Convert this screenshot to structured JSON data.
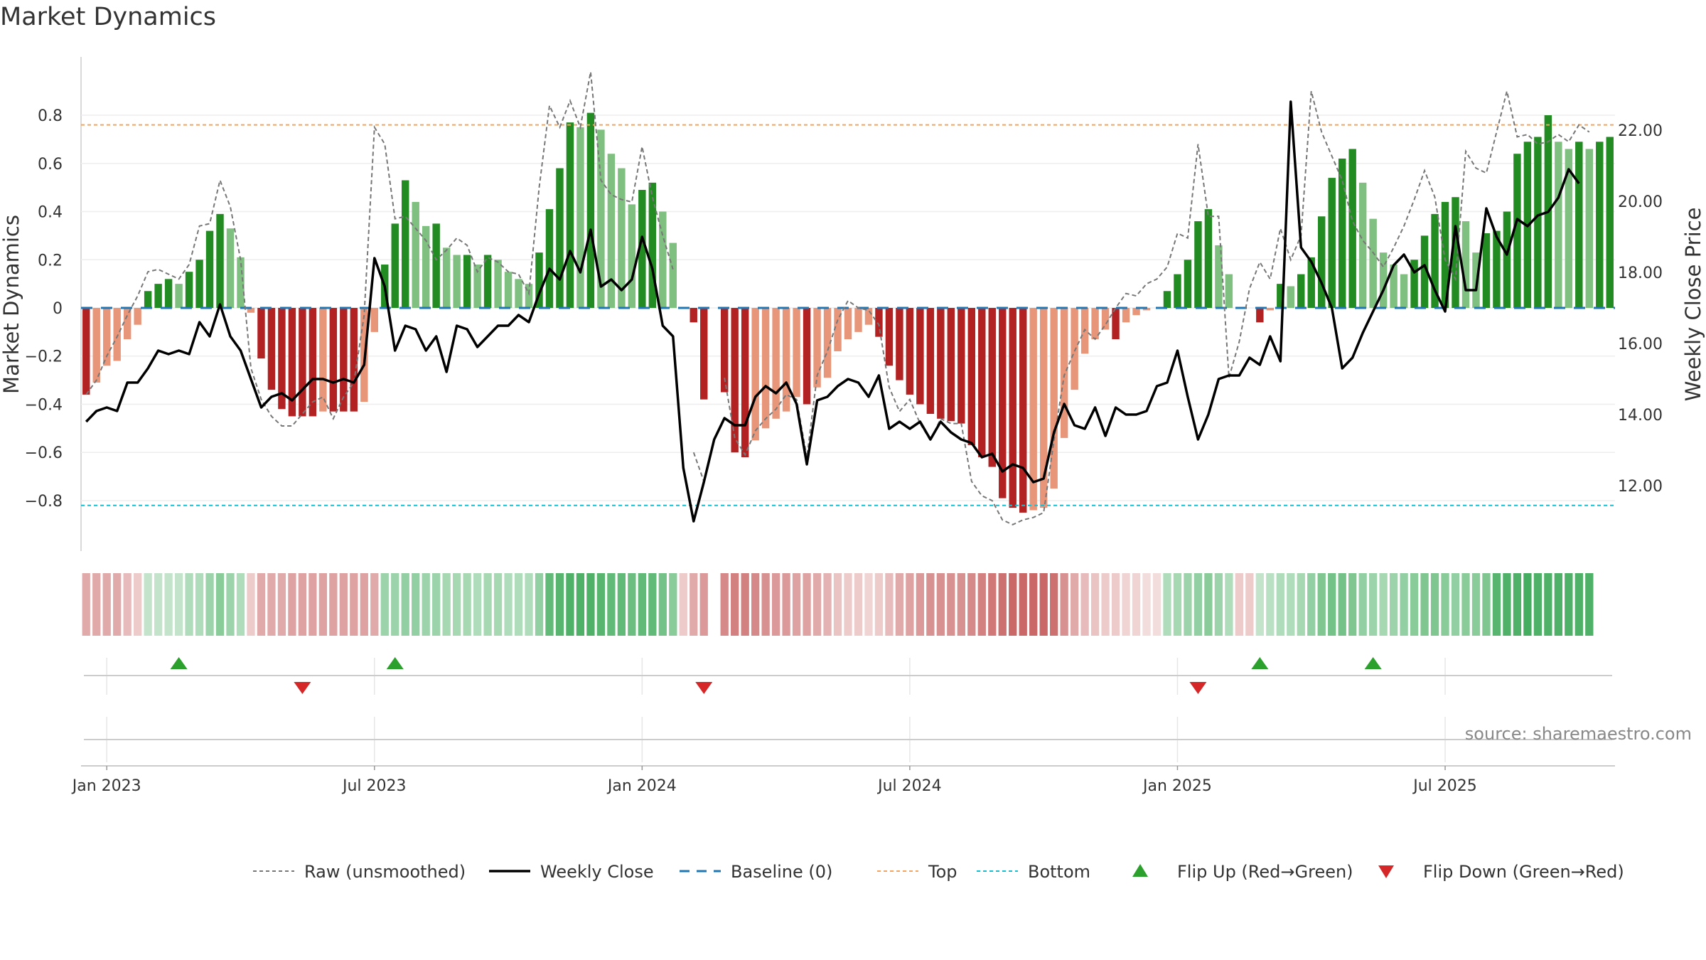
{
  "title": "Market Dynamics",
  "source": "source: sharemaestro.com",
  "colors": {
    "strong_green": "#228b22",
    "light_green": "#7fbf7f",
    "strong_red": "#b22222",
    "light_red": "#e8967a",
    "weekly_close": "#000000",
    "raw": "#777777",
    "baseline": "#1f77b4",
    "top": "#f4a460",
    "bottom": "#17becf",
    "flip_up": "#2ca02c",
    "flip_down": "#d62728"
  },
  "chart_data": {
    "type": "bar",
    "title": "Market Dynamics",
    "ylabel": "Market Dynamics",
    "y2label": "Weekly Close Price",
    "ylim": [
      -0.93,
      0.93
    ],
    "y2lim": [
      10.7,
      23.3
    ],
    "yticks": [
      {
        "v": 0.8,
        "label": "0.8"
      },
      {
        "v": 0.6,
        "label": "0.6"
      },
      {
        "v": 0.4,
        "label": "0.4"
      },
      {
        "v": 0.2,
        "label": "0.2"
      },
      {
        "v": 0,
        "label": "0"
      },
      {
        "v": -0.2,
        "label": "−0.2"
      },
      {
        "v": -0.4,
        "label": "−0.4"
      },
      {
        "v": -0.6,
        "label": "−0.6"
      },
      {
        "v": -0.8,
        "label": "−0.8"
      }
    ],
    "y2ticks": [
      {
        "v": 22,
        "label": "22.00"
      },
      {
        "v": 20,
        "label": "20.00"
      },
      {
        "v": 18,
        "label": "18.00"
      },
      {
        "v": 16,
        "label": "16.00"
      },
      {
        "v": 14,
        "label": "14.00"
      },
      {
        "v": 12,
        "label": "12.00"
      }
    ],
    "xticks": [
      {
        "week": 2,
        "label": "Jan 2023"
      },
      {
        "week": 28,
        "label": "Jul 2023"
      },
      {
        "week": 54,
        "label": "Jan 2024"
      },
      {
        "week": 80,
        "label": "Jul 2024"
      },
      {
        "week": 106,
        "label": "Jan 2025"
      },
      {
        "week": 132,
        "label": "Jul 2025"
      }
    ],
    "top_level": 0.76,
    "bottom_level": -0.82,
    "baseline": 0,
    "market_dynamics": [
      -0.36,
      -0.31,
      -0.24,
      -0.22,
      -0.13,
      -0.07,
      0.07,
      0.1,
      0.12,
      0.1,
      0.15,
      0.2,
      0.32,
      0.39,
      0.33,
      0.21,
      -0.02,
      -0.21,
      -0.34,
      -0.42,
      -0.45,
      -0.45,
      -0.45,
      -0.43,
      -0.43,
      -0.43,
      -0.43,
      -0.39,
      -0.1,
      0.18,
      0.35,
      0.53,
      0.44,
      0.34,
      0.35,
      0.25,
      0.22,
      0.22,
      0.18,
      0.22,
      0.2,
      0.15,
      0.12,
      0.1,
      0.23,
      0.41,
      0.58,
      0.77,
      0.75,
      0.81,
      0.74,
      0.64,
      0.58,
      0.43,
      0.49,
      0.52,
      0.4,
      0.27,
      null,
      -0.06,
      -0.38,
      null,
      -0.35,
      -0.6,
      -0.62,
      -0.55,
      -0.5,
      -0.46,
      -0.43,
      -0.37,
      -0.4,
      -0.33,
      -0.29,
      -0.18,
      -0.13,
      -0.1,
      -0.07,
      -0.12,
      -0.24,
      -0.3,
      -0.36,
      -0.4,
      -0.44,
      -0.46,
      -0.47,
      -0.48,
      -0.57,
      -0.62,
      -0.66,
      -0.79,
      -0.83,
      -0.85,
      -0.84,
      -0.83,
      -0.75,
      -0.54,
      -0.34,
      -0.19,
      -0.13,
      -0.09,
      -0.13,
      -0.06,
      -0.03,
      -0.01,
      null,
      0.07,
      0.14,
      0.2,
      0.36,
      0.41,
      0.26,
      0.14,
      null,
      null,
      -0.06,
      -0.01,
      0.1,
      0.09,
      0.14,
      0.21,
      0.38,
      0.54,
      0.62,
      0.66,
      0.52,
      0.37,
      0.23,
      0.18,
      0.14,
      0.2,
      0.3,
      0.39,
      0.44,
      0.46,
      0.36,
      0.23,
      0.31,
      0.32,
      0.4,
      0.64,
      0.69,
      0.71,
      0.8,
      0.69,
      0.66,
      0.69,
      0.66,
      0.69,
      0.71
    ],
    "raw_unsmoothed": [
      -0.36,
      -0.3,
      -0.2,
      -0.12,
      -0.03,
      0.05,
      0.15,
      0.16,
      0.14,
      0.12,
      0.18,
      0.34,
      0.35,
      0.53,
      0.42,
      0.2,
      -0.25,
      -0.38,
      -0.45,
      -0.49,
      -0.49,
      -0.44,
      -0.39,
      -0.37,
      -0.46,
      -0.37,
      -0.31,
      -0.03,
      0.75,
      0.68,
      0.37,
      0.38,
      0.33,
      0.28,
      0.2,
      0.24,
      0.29,
      0.26,
      0.15,
      0.21,
      0.19,
      0.15,
      0.14,
      0.06,
      0.5,
      0.84,
      0.75,
      0.86,
      0.75,
      0.98,
      0.53,
      0.47,
      0.45,
      0.44,
      0.67,
      0.46,
      0.3,
      0.16,
      null,
      -0.6,
      -0.72,
      null,
      -0.29,
      -0.54,
      -0.61,
      -0.51,
      -0.46,
      -0.42,
      -0.36,
      -0.38,
      -0.62,
      -0.28,
      -0.18,
      -0.05,
      0.03,
      0.0,
      -0.01,
      -0.07,
      -0.33,
      -0.43,
      -0.38,
      -0.48,
      -0.55,
      -0.46,
      -0.48,
      -0.48,
      -0.72,
      -0.78,
      -0.8,
      -0.88,
      -0.9,
      -0.88,
      -0.87,
      -0.85,
      -0.55,
      -0.28,
      -0.18,
      -0.09,
      -0.13,
      -0.07,
      0.0,
      0.06,
      0.05,
      0.1,
      0.12,
      0.17,
      0.31,
      0.29,
      0.68,
      0.38,
      0.38,
      -0.29,
      -0.14,
      0.08,
      0.19,
      0.12,
      0.33,
      0.2,
      0.3,
      0.9,
      0.73,
      0.63,
      0.53,
      0.36,
      0.28,
      0.23,
      0.17,
      0.25,
      0.34,
      0.45,
      0.57,
      0.46,
      0.2,
      0.12,
      0.65,
      0.58,
      0.56,
      0.73,
      0.9,
      0.71,
      0.72,
      0.68,
      0.69,
      0.72,
      0.69,
      0.76,
      0.73
    ],
    "weekly_close": [
      13.8,
      14.1,
      14.2,
      14.1,
      14.9,
      14.9,
      15.3,
      15.8,
      15.7,
      15.8,
      15.7,
      16.6,
      16.2,
      17.1,
      16.2,
      15.8,
      15.0,
      14.2,
      14.5,
      14.6,
      14.4,
      14.7,
      15.0,
      15.0,
      14.9,
      15.0,
      14.9,
      15.4,
      18.4,
      17.6,
      15.8,
      16.5,
      16.4,
      15.8,
      16.2,
      15.2,
      16.5,
      16.4,
      15.9,
      16.2,
      16.5,
      16.5,
      16.8,
      16.6,
      17.4,
      18.1,
      17.8,
      18.6,
      18.0,
      19.2,
      17.6,
      17.8,
      17.5,
      17.8,
      19.0,
      18.1,
      16.5,
      16.2,
      12.5,
      11.0,
      12.1,
      13.3,
      13.9,
      13.7,
      13.7,
      14.5,
      14.8,
      14.6,
      14.9,
      14.3,
      12.6,
      14.4,
      14.5,
      14.8,
      15.0,
      14.9,
      14.5,
      15.1,
      13.6,
      13.8,
      13.6,
      13.8,
      13.3,
      13.8,
      13.5,
      13.3,
      13.2,
      12.8,
      12.9,
      12.4,
      12.6,
      12.5,
      12.1,
      12.2,
      13.5,
      14.3,
      13.7,
      13.6,
      14.2,
      13.4,
      14.2,
      14.0,
      14.0,
      14.1,
      14.8,
      14.9,
      15.8,
      14.5,
      13.3,
      14.0,
      15.0,
      15.1,
      15.1,
      15.6,
      15.4,
      16.2,
      15.5,
      22.8,
      18.7,
      18.3,
      17.7,
      17.0,
      15.3,
      15.6,
      16.3,
      16.9,
      17.5,
      18.2,
      18.5,
      18.0,
      18.2,
      17.5,
      16.9,
      19.3,
      17.5,
      17.5,
      19.8,
      19.0,
      18.5,
      19.5,
      19.3,
      19.6,
      19.7,
      20.1,
      20.9,
      20.5
    ],
    "heat_strip": [
      -0.4,
      -0.4,
      -0.4,
      -0.4,
      -0.3,
      -0.2,
      0.2,
      0.2,
      0.2,
      0.2,
      0.3,
      0.3,
      0.4,
      0.5,
      0.4,
      0.3,
      -0.2,
      -0.4,
      -0.4,
      -0.4,
      -0.45,
      -0.45,
      -0.45,
      -0.45,
      -0.45,
      -0.45,
      -0.45,
      -0.45,
      -0.4,
      0.4,
      0.4,
      0.45,
      0.45,
      0.4,
      0.4,
      0.35,
      0.35,
      0.35,
      0.3,
      0.35,
      0.35,
      0.3,
      0.3,
      0.3,
      0.45,
      0.7,
      0.75,
      0.8,
      0.8,
      0.8,
      0.75,
      0.7,
      0.7,
      0.65,
      0.7,
      0.7,
      0.6,
      0.5,
      -0.2,
      -0.4,
      -0.5,
      null,
      -0.6,
      -0.65,
      -0.65,
      -0.6,
      -0.55,
      -0.5,
      -0.5,
      -0.45,
      -0.45,
      -0.4,
      -0.35,
      -0.25,
      -0.2,
      -0.2,
      -0.15,
      -0.2,
      -0.3,
      -0.4,
      -0.45,
      -0.5,
      -0.55,
      -0.55,
      -0.55,
      -0.55,
      -0.6,
      -0.65,
      -0.7,
      -0.75,
      -0.8,
      -0.8,
      -0.8,
      -0.8,
      -0.75,
      -0.55,
      -0.4,
      -0.3,
      -0.25,
      -0.2,
      -0.2,
      -0.15,
      -0.15,
      -0.1,
      -0.1,
      0.3,
      0.35,
      0.4,
      0.45,
      0.5,
      0.4,
      0.3,
      -0.2,
      -0.2,
      0.2,
      0.25,
      0.3,
      0.3,
      0.35,
      0.45,
      0.55,
      0.6,
      0.6,
      0.55,
      0.45,
      0.4,
      0.35,
      0.4,
      0.45,
      0.5,
      0.55,
      0.55,
      0.5,
      0.45,
      0.5,
      0.5,
      0.55,
      0.75,
      0.8,
      0.8,
      0.85,
      0.8,
      0.8,
      0.8,
      0.8,
      0.8,
      0.8
    ],
    "flips_up_weeks": [
      9,
      30,
      114,
      125
    ],
    "flips_down_weeks": [
      21,
      60,
      108
    ],
    "legend": [
      {
        "label": "Raw (unsmoothed)",
        "icon": "dotted-line"
      },
      {
        "label": "Weekly Close",
        "icon": "solid-line"
      },
      {
        "label": "Baseline (0)",
        "icon": "dashed-line"
      },
      {
        "label": "Top",
        "icon": "dotted-line"
      },
      {
        "label": "Bottom",
        "icon": "dotted-line"
      },
      {
        "label": "Flip Up (Red→Green)",
        "icon": "triangle-up"
      },
      {
        "label": "Flip Down (Green→Red)",
        "icon": "triangle-down"
      }
    ],
    "legend_position": "bottom-center",
    "grid": true
  }
}
